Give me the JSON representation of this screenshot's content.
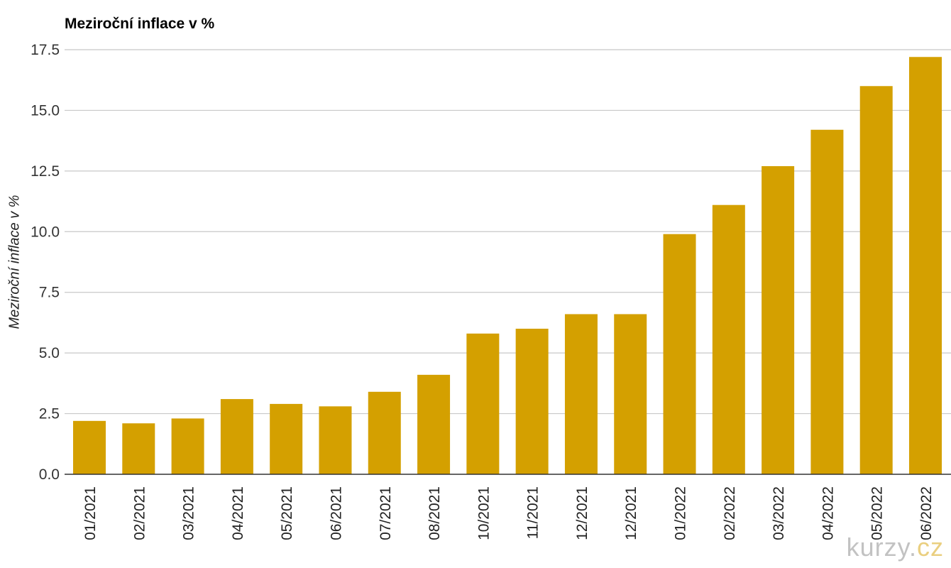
{
  "chart_data": {
    "type": "bar",
    "title": "Meziroční inflace v %",
    "ylabel": "Meziroční inflace v %",
    "xlabel": "",
    "ylim": [
      0,
      17.5
    ],
    "yticks": [
      "0.0",
      "2.5",
      "5.0",
      "7.5",
      "10.0",
      "12.5",
      "15.0",
      "17.5"
    ],
    "categories": [
      "01/2021",
      "02/2021",
      "03/2021",
      "04/2021",
      "05/2021",
      "06/2021",
      "07/2021",
      "08/2021",
      "10/2021",
      "11/2021",
      "12/2021",
      "12/2021",
      "01/2022",
      "02/2022",
      "03/2022",
      "04/2022",
      "05/2022",
      "06/2022"
    ],
    "values": [
      2.2,
      2.1,
      2.3,
      3.1,
      2.9,
      2.8,
      3.4,
      4.1,
      5.8,
      6.0,
      6.6,
      6.6,
      9.9,
      11.1,
      12.7,
      14.2,
      16.0,
      17.2
    ],
    "grid": true,
    "bar_color": "#d4a000",
    "grid_color": "#c8c8c8",
    "axis_color": "#333333"
  },
  "watermark": {
    "text_main": "kurzy.",
    "text_accent": "cz"
  }
}
